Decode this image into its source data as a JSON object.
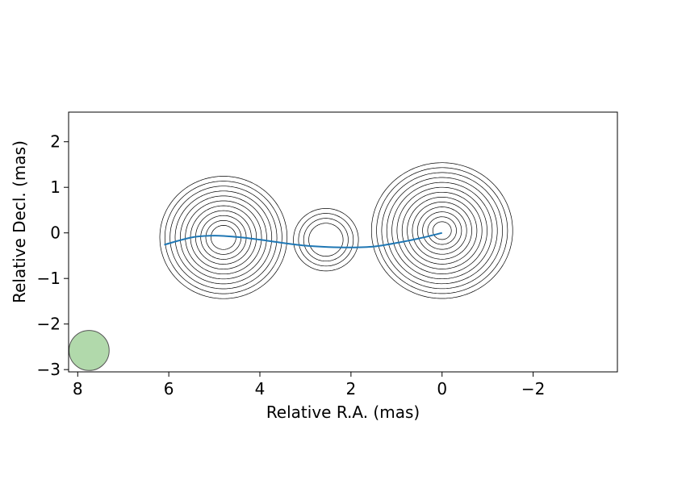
{
  "chart_data": {
    "type": "contour",
    "xlabel": "Relative R.A. (mas)",
    "ylabel": "Relative Decl. (mas)",
    "xlim": [
      8.2,
      -3.85
    ],
    "ylim": [
      -3.05,
      2.65
    ],
    "xticks": [
      8,
      6,
      4,
      2,
      0,
      -2
    ],
    "xtick_labels": [
      "8",
      "6",
      "4",
      "2",
      "0",
      "−2"
    ],
    "yticks": [
      2,
      1,
      0,
      -1,
      -2,
      -3
    ],
    "ytick_labels": [
      "2",
      "1",
      "0",
      "−1",
      "−2",
      "−3"
    ],
    "components": [
      {
        "x": 4.8,
        "y": -0.1,
        "levels": 11,
        "peak_radius": 0.27
      },
      {
        "x": 2.55,
        "y": -0.15,
        "levels": 4,
        "peak_radius": 0.37
      },
      {
        "x": 0.0,
        "y": 0.05,
        "levels": 13,
        "peak_radius": 0.2
      }
    ],
    "ridge_line": {
      "color": "#1f77b4",
      "x": [
        6.1,
        5.5,
        5.0,
        4.5,
        4.0,
        3.5,
        3.0,
        2.5,
        2.0,
        1.5,
        1.0,
        0.5,
        0.0
      ],
      "y": [
        -0.26,
        -0.1,
        -0.06,
        -0.09,
        -0.15,
        -0.22,
        -0.28,
        -0.31,
        -0.32,
        -0.3,
        -0.22,
        -0.12,
        0.0
      ]
    },
    "beam": {
      "x": 7.75,
      "y": -2.58,
      "diameter": 0.88,
      "fill": "#a8d5a2",
      "edge": "#555555"
    },
    "grid": false,
    "contour_color": "#000000"
  }
}
